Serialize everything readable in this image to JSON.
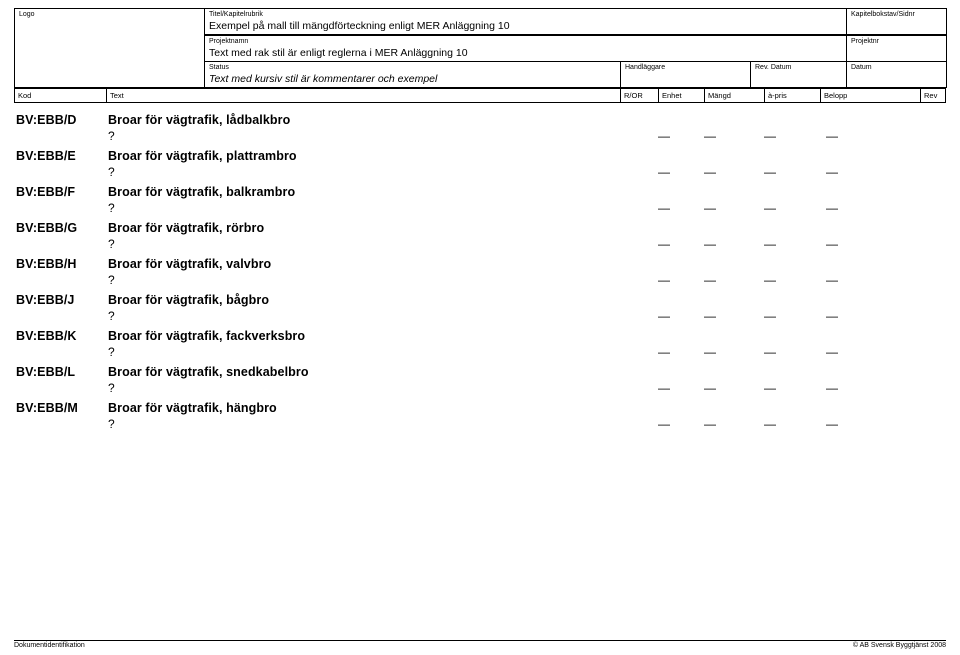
{
  "header": {
    "logo_label": "Logo",
    "title_label": "Titel/Kapitelrubrik",
    "title_value": "Exempel på mall till mängdförteckning enligt MER Anläggning 10",
    "chapter_label": "Kapitelbokstav/Sidnr",
    "project_label": "Projektnamn",
    "project_value": "Text med rak stil är enligt reglerna i MER Anläggning 10",
    "projectnr_label": "Projektnr",
    "status_label": "Status",
    "status_value": "Text med kursiv stil är kommentarer och exempel",
    "handler_label": "Handläggare",
    "revdate_label": "Rev. Datum",
    "date_label": "Datum"
  },
  "columns": {
    "c0": "Kod",
    "c1": "Text",
    "c2": "R/OR",
    "c3": "Enhet",
    "c4": "Mängd",
    "c5": "à-pris",
    "c6": "Belopp",
    "c7": "Rev"
  },
  "dash": "—",
  "qmark": "?",
  "items": [
    {
      "kod": "BV:EBB/D",
      "text": "Broar för vägtrafik, lådbalkbro"
    },
    {
      "kod": "BV:EBB/E",
      "text": "Broar för vägtrafik, plattrambro"
    },
    {
      "kod": "BV:EBB/F",
      "text": "Broar för vägtrafik, balkrambro"
    },
    {
      "kod": "BV:EBB/G",
      "text": "Broar för vägtrafik, rörbro"
    },
    {
      "kod": "BV:EBB/H",
      "text": "Broar för vägtrafik, valvbro"
    },
    {
      "kod": "BV:EBB/J",
      "text": "Broar för vägtrafik, bågbro"
    },
    {
      "kod": "BV:EBB/K",
      "text": "Broar för vägtrafik, fackverksbro"
    },
    {
      "kod": "BV:EBB/L",
      "text": "Broar för vägtrafik, snedkabelbro"
    },
    {
      "kod": "BV:EBB/M",
      "text": "Broar för vägtrafik, hängbro"
    }
  ],
  "footer": {
    "left": "Dokumentidentifikation",
    "right": "© AB Svensk Byggtjänst 2008"
  }
}
